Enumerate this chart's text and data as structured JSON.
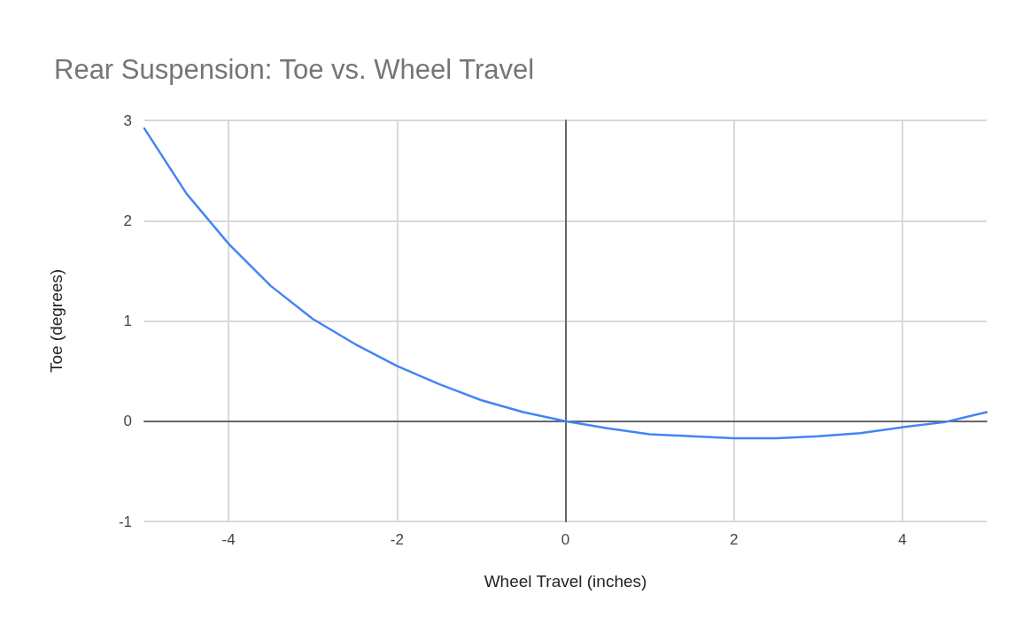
{
  "chart_data": {
    "type": "line",
    "title": "Rear Suspension: Toe vs. Wheel Travel",
    "xlabel": "Wheel Travel (inches)",
    "ylabel": "Toe (degrees)",
    "x": [
      -5,
      -4.5,
      -4,
      -3.5,
      -3,
      -2.5,
      -2,
      -1.5,
      -1,
      -0.5,
      0,
      0.5,
      1,
      1.5,
      2,
      2.5,
      3,
      3.5,
      4,
      4.5,
      5
    ],
    "series": [
      {
        "color": "#4285f4",
        "values": [
          2.92,
          2.27,
          1.77,
          1.35,
          1.02,
          0.77,
          0.55,
          0.37,
          0.21,
          0.09,
          0,
          -0.07,
          -0.13,
          -0.15,
          -0.17,
          -0.17,
          -0.15,
          -0.12,
          -0.06,
          -0.01,
          0.09
        ]
      }
    ],
    "xlim": [
      -5,
      5
    ],
    "xticks": [
      -4,
      -2,
      0,
      2,
      4
    ],
    "ylim": [
      -1,
      3
    ],
    "yticks": [
      -1,
      0,
      1,
      2,
      3
    ],
    "grid": true,
    "marker": "none",
    "line_style": "solid"
  }
}
